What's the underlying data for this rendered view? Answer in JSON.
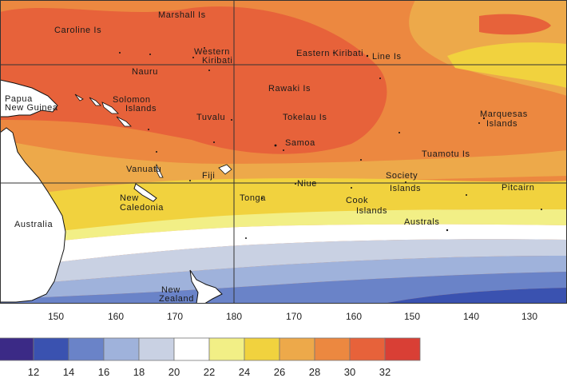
{
  "map": {
    "labels": {
      "marshall": "Marshall Is",
      "caroline": "Caroline Is",
      "western_kiribati_1": "Western",
      "western_kiribati_2": "Kiribati",
      "eastern_kiribati": "Eastern Kiribati",
      "line": "Line Is",
      "nauru": "Nauru",
      "rawaki": "Rawaki Is",
      "png_1": "Papua",
      "png_2": "New Guinea",
      "solomon_1": "Solomon",
      "solomon_2": "Islands",
      "tuvalu": "Tuvalu",
      "tokelau": "Tokelau Is",
      "marquesas_1": "Marquesas",
      "marquesas_2": "Islands",
      "samoa": "Samoa",
      "tuamotu": "Tuamotu Is",
      "vanuatu": "Vanuatu",
      "fiji": "Fiji",
      "niue": "Niue",
      "society_1": "Society",
      "society_2": "Islands",
      "pitcairn": "Pitcairn",
      "new_caledonia_1": "New",
      "new_caledonia_2": "Caledonia",
      "tonga": "Tonga",
      "cook_1": "Cook",
      "cook_2": "Islands",
      "australs": "Australs",
      "australia": "Australia",
      "new_zealand_1": "New",
      "new_zealand_2": "Zealand"
    },
    "longitude_ticks": [
      "150",
      "160",
      "170",
      "180",
      "170",
      "160",
      "150",
      "140",
      "130"
    ]
  },
  "colorbar": {
    "ticks": [
      "12",
      "14",
      "16",
      "18",
      "20",
      "22",
      "24",
      "26",
      "28",
      "30",
      "32"
    ],
    "colors": [
      "#3b2a86",
      "#3a52b0",
      "#6a83c8",
      "#9fb2db",
      "#c9d1e3",
      "#ffffff",
      "#f2ef86",
      "#f1d23e",
      "#eda94a",
      "#ec8840",
      "#e7623a",
      "#d93f35"
    ]
  },
  "colors": {
    "land": "#ffffff",
    "grid": "#333333"
  }
}
